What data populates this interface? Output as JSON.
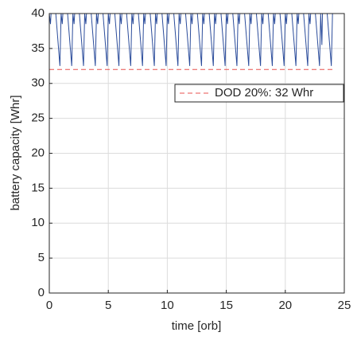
{
  "chart_data": {
    "type": "line",
    "xlabel": "time [orb]",
    "ylabel": "battery capacity [Whr]",
    "xlim": [
      0,
      25
    ],
    "ylim": [
      0,
      40
    ],
    "xticks": [
      0,
      5,
      10,
      15,
      20,
      25
    ],
    "yticks": [
      0,
      5,
      10,
      15,
      20,
      25,
      30,
      35,
      40
    ],
    "grid": true,
    "legend": "northeast",
    "series": [
      {
        "color": "#2b4c9b",
        "dashed": false,
        "x": [
          0,
          0.1,
          0.15,
          0.55,
          0.9,
          1,
          1.1,
          1.15,
          1.55,
          1.9,
          2,
          2.1,
          2.15,
          2.55,
          2.9,
          3,
          3.1,
          3.15,
          3.55,
          3.9,
          4,
          4.1,
          4.15,
          4.55,
          4.9,
          5,
          5.1,
          5.15,
          5.55,
          5.9,
          6,
          6.1,
          6.15,
          6.55,
          6.9,
          7,
          7.1,
          7.15,
          7.55,
          7.9,
          8,
          8.1,
          8.15,
          8.55,
          8.9,
          9,
          9.1,
          9.15,
          9.55,
          9.9,
          10,
          10.1,
          10.15,
          10.55,
          10.9,
          11,
          11.1,
          11.15,
          11.55,
          11.9,
          12,
          12.1,
          12.15,
          12.55,
          12.9,
          13,
          13.1,
          13.15,
          13.55,
          13.9,
          14,
          14.1,
          14.15,
          14.55,
          14.9,
          15,
          15.1,
          15.15,
          15.55,
          15.9,
          16,
          16.1,
          16.15,
          16.55,
          16.9,
          17,
          17.1,
          17.15,
          17.55,
          17.9,
          18,
          18.1,
          18.15,
          18.55,
          18.9,
          19,
          19.1,
          19.15,
          19.55,
          19.9,
          20,
          20.1,
          20.15,
          20.55,
          20.9,
          21,
          21.1,
          21.15,
          21.55,
          21.9,
          22,
          22.1,
          22.15,
          22.55,
          22.9,
          23,
          23.1,
          23.15,
          23.55,
          23.9,
          24
        ],
        "values": [
          40,
          38.5,
          40,
          40,
          32.5,
          40,
          38.5,
          40,
          40,
          32.5,
          40,
          38.5,
          40,
          40,
          32.5,
          40,
          38.5,
          40,
          40,
          32.5,
          40,
          38.5,
          40,
          40,
          32.5,
          40,
          38.5,
          40,
          40,
          32.5,
          40,
          38.5,
          40,
          40,
          32.5,
          40,
          38.5,
          40,
          40,
          32.5,
          40,
          38.5,
          40,
          40,
          32.5,
          40,
          38.5,
          40,
          40,
          32.5,
          40,
          38.5,
          40,
          40,
          32.5,
          40,
          38.5,
          40,
          40,
          32.5,
          40,
          38.5,
          40,
          40,
          32.5,
          40,
          38.5,
          40,
          40,
          32.5,
          40,
          38.5,
          40,
          40,
          32.5,
          40,
          38.5,
          40,
          40,
          32.5,
          40,
          38.5,
          40,
          40,
          32.5,
          40,
          38.5,
          40,
          40,
          32.5,
          40,
          38.5,
          40,
          40,
          32.5,
          40,
          38.5,
          40,
          40,
          32.5,
          40,
          38.5,
          40,
          40,
          32.5,
          40,
          38.5,
          40,
          40,
          32.5,
          40,
          38.5,
          40,
          40,
          32.5,
          40,
          35.5,
          40,
          40,
          32.5,
          40
        ]
      },
      {
        "name": "DOD 20%: 32 Whr",
        "color": "#e8524f",
        "dashed": true,
        "x": [
          0,
          24
        ],
        "values": [
          32,
          32
        ]
      }
    ]
  }
}
